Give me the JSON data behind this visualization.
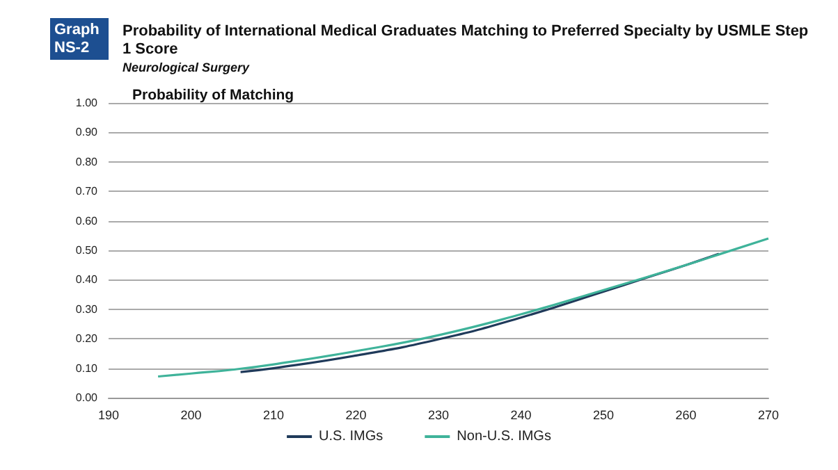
{
  "chart_data": {
    "type": "line",
    "title": "Probability of International Medical Graduates Matching to Preferred Specialty by USMLE Step 1 Score",
    "subtitle": "Neurological Surgery",
    "ylabel": "Probability of Matching",
    "annotations": [
      "Graph\nNS-2"
    ],
    "xlim": [
      190,
      270
    ],
    "xticks": [
      190,
      200,
      210,
      220,
      230,
      240,
      250,
      260,
      270
    ],
    "ylim": [
      0,
      1
    ],
    "yticks": [
      {
        "value": 0,
        "label": "0.00"
      },
      {
        "value": 0.1,
        "label": "0.10"
      },
      {
        "value": 0.2,
        "label": "0.20"
      },
      {
        "value": 0.3,
        "label": "0.30"
      },
      {
        "value": 0.4,
        "label": "0.40"
      },
      {
        "value": 0.5,
        "label": "0.50"
      },
      {
        "value": 0.6,
        "label": "0.60"
      },
      {
        "value": 0.7,
        "label": "0.70"
      },
      {
        "value": 0.8,
        "label": "0.80"
      },
      {
        "value": 0.9,
        "label": "0.90"
      },
      {
        "value": 1,
        "label": "1.00"
      }
    ],
    "grid": "y",
    "legend": "bottom",
    "marker": "none",
    "line_style": "solid",
    "series": [
      {
        "name": "U.S. IMGs",
        "color": "#1f3a5a",
        "x": [
          206,
          210,
          220,
          230,
          240,
          250,
          255,
          260,
          264
        ],
        "values": [
          0.087,
          0.1,
          0.143,
          0.198,
          0.272,
          0.36,
          0.405,
          0.45,
          0.488
        ]
      },
      {
        "name": "Non-U.S. IMGs",
        "color": "#3fb39a",
        "x": [
          196,
          200,
          205,
          210,
          220,
          230,
          240,
          250,
          260,
          265,
          270
        ],
        "values": [
          0.072,
          0.082,
          0.095,
          0.113,
          0.158,
          0.212,
          0.283,
          0.365,
          0.45,
          0.495,
          0.54
        ]
      }
    ]
  }
}
